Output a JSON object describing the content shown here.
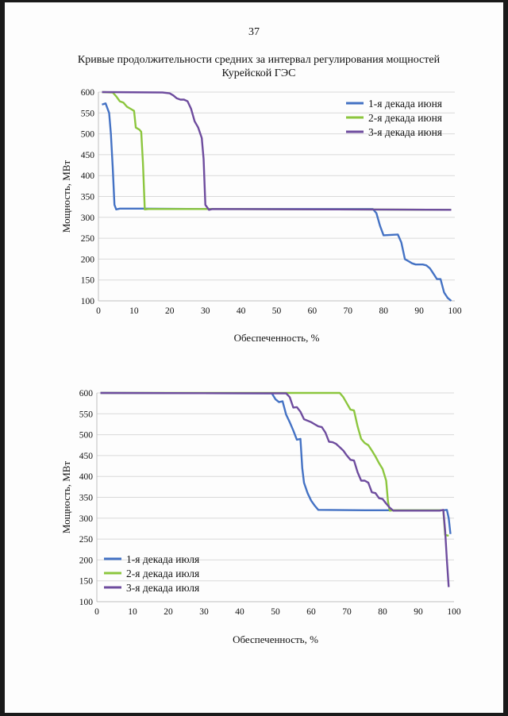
{
  "page": {
    "number": "37"
  },
  "document": {
    "title_line1": "Кривые продолжительности средних за интервал регулирования мощностей",
    "title_line2": "Курейской ГЭС"
  },
  "chart_data": [
    {
      "type": "line",
      "xlabel": "Обеспеченность, %",
      "ylabel": "Мощность, МВт",
      "xlim": [
        0,
        100
      ],
      "ylim": [
        100,
        600
      ],
      "xticks": [
        0,
        10,
        20,
        30,
        40,
        50,
        60,
        70,
        80,
        90,
        100
      ],
      "yticks": [
        100,
        150,
        200,
        250,
        300,
        350,
        400,
        450,
        500,
        550,
        600
      ],
      "grid": true,
      "legend_position": "top-right",
      "series": [
        {
          "name": "1-я декада июня",
          "color": "#4472C4",
          "points": [
            [
              1,
              570
            ],
            [
              2,
              573
            ],
            [
              3,
              550
            ],
            [
              3.5,
              500
            ],
            [
              4,
              420
            ],
            [
              4.5,
              330
            ],
            [
              5,
              319
            ],
            [
              6,
              321
            ],
            [
              12,
              321
            ],
            [
              30,
              320
            ],
            [
              77,
              320
            ],
            [
              78,
              310
            ],
            [
              79,
              280
            ],
            [
              80,
              257
            ],
            [
              82,
              258
            ],
            [
              84,
              259
            ],
            [
              85,
              240
            ],
            [
              86,
              200
            ],
            [
              87,
              195
            ],
            [
              88,
              190
            ],
            [
              89,
              187
            ],
            [
              91,
              187
            ],
            [
              92,
              185
            ],
            [
              93,
              178
            ],
            [
              94,
              165
            ],
            [
              95,
              152
            ],
            [
              96,
              152
            ],
            [
              97,
              120
            ],
            [
              98,
              107
            ],
            [
              99,
              100
            ]
          ]
        },
        {
          "name": "2-я декада июня",
          "color": "#8CC63E",
          "points": [
            [
              1,
              600
            ],
            [
              4,
              599
            ],
            [
              5,
              590
            ],
            [
              6,
              578
            ],
            [
              7,
              575
            ],
            [
              8,
              565
            ],
            [
              9,
              560
            ],
            [
              10,
              555
            ],
            [
              10.5,
              515
            ],
            [
              11.5,
              510
            ],
            [
              12,
              505
            ],
            [
              12.5,
              430
            ],
            [
              13,
              319
            ],
            [
              14,
              320
            ],
            [
              30,
              320
            ],
            [
              99,
              318
            ]
          ]
        },
        {
          "name": "3-я декада июня",
          "color": "#6E4C9E",
          "points": [
            [
              1,
              600
            ],
            [
              18,
              599
            ],
            [
              20,
              597
            ],
            [
              21,
              592
            ],
            [
              22,
              585
            ],
            [
              23,
              582
            ],
            [
              24,
              582
            ],
            [
              25,
              578
            ],
            [
              26,
              560
            ],
            [
              27,
              530
            ],
            [
              28,
              515
            ],
            [
              29,
              490
            ],
            [
              29.5,
              440
            ],
            [
              30,
              330
            ],
            [
              31,
              318
            ],
            [
              32,
              320
            ],
            [
              99,
              318
            ]
          ]
        }
      ]
    },
    {
      "type": "line",
      "xlabel": "Обеспеченность, %",
      "ylabel": "Мощность, МВт",
      "xlim": [
        0,
        100
      ],
      "ylim": [
        100,
        600
      ],
      "xticks": [
        0,
        10,
        20,
        30,
        40,
        50,
        60,
        70,
        80,
        90,
        100
      ],
      "yticks": [
        100,
        150,
        200,
        250,
        300,
        350,
        400,
        450,
        500,
        550,
        600
      ],
      "grid": true,
      "legend_position": "bottom-left",
      "series": [
        {
          "name": "1-я декада июля",
          "color": "#4472C4",
          "points": [
            [
              1,
              600
            ],
            [
              49,
              599
            ],
            [
              50,
              585
            ],
            [
              51,
              578
            ],
            [
              52,
              580
            ],
            [
              53,
              548
            ],
            [
              54,
              530
            ],
            [
              55,
              510
            ],
            [
              56,
              488
            ],
            [
              57,
              490
            ],
            [
              57.5,
              420
            ],
            [
              58,
              385
            ],
            [
              59,
              360
            ],
            [
              60,
              342
            ],
            [
              61,
              330
            ],
            [
              62,
              320
            ],
            [
              75,
              319
            ],
            [
              97,
              319
            ],
            [
              98,
              320
            ],
            [
              98.5,
              300
            ],
            [
              99,
              262
            ]
          ]
        },
        {
          "name": "2-я декада июля",
          "color": "#8CC63E",
          "points": [
            [
              1,
              600
            ],
            [
              67,
              600
            ],
            [
              68,
              600
            ],
            [
              69,
              590
            ],
            [
              70,
              575
            ],
            [
              71,
              560
            ],
            [
              72,
              558
            ],
            [
              73,
              520
            ],
            [
              74,
              490
            ],
            [
              75,
              480
            ],
            [
              76,
              475
            ],
            [
              77,
              462
            ],
            [
              78,
              448
            ],
            [
              79,
              432
            ],
            [
              80,
              418
            ],
            [
              81,
              390
            ],
            [
              81.5,
              340
            ],
            [
              82,
              318
            ],
            [
              83,
              319
            ],
            [
              97,
              319
            ],
            [
              97.5,
              260
            ],
            [
              98.5,
              258
            ]
          ]
        },
        {
          "name": "3-я декада июля",
          "color": "#6E4C9E",
          "points": [
            [
              1,
              600
            ],
            [
              53,
              599
            ],
            [
              54,
              590
            ],
            [
              55,
              565
            ],
            [
              56,
              566
            ],
            [
              57,
              555
            ],
            [
              58,
              537
            ],
            [
              60,
              530
            ],
            [
              61,
              525
            ],
            [
              62,
              520
            ],
            [
              63,
              518
            ],
            [
              64,
              505
            ],
            [
              65,
              483
            ],
            [
              66,
              482
            ],
            [
              67,
              478
            ],
            [
              68,
              470
            ],
            [
              69,
              462
            ],
            [
              70,
              450
            ],
            [
              71,
              440
            ],
            [
              72,
              438
            ],
            [
              73,
              410
            ],
            [
              74,
              390
            ],
            [
              75,
              390
            ],
            [
              76,
              385
            ],
            [
              77,
              362
            ],
            [
              78,
              360
            ],
            [
              79,
              348
            ],
            [
              80,
              346
            ],
            [
              81,
              335
            ],
            [
              82,
              325
            ],
            [
              83,
              318
            ],
            [
              96,
              318
            ],
            [
              97,
              320
            ],
            [
              97.5,
              270
            ],
            [
              98,
              200
            ],
            [
              98.5,
              135
            ]
          ]
        }
      ]
    }
  ]
}
